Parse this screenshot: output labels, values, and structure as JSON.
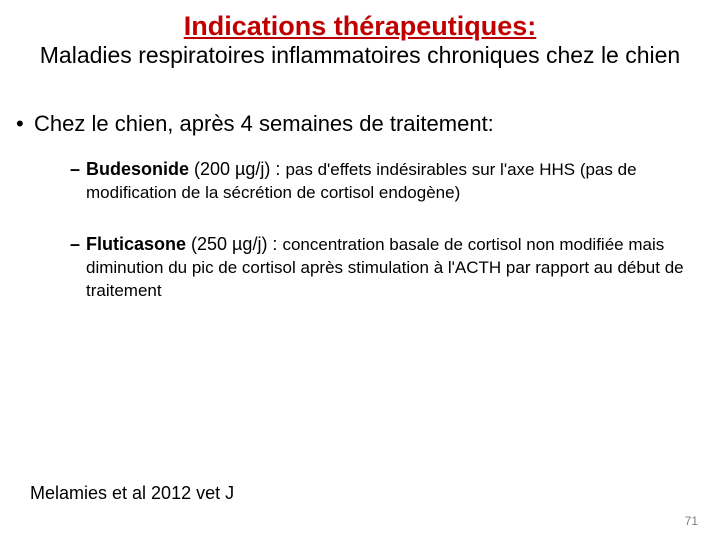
{
  "colors": {
    "title": "#c00000",
    "text": "#000000",
    "pagenum": "#808080",
    "background": "#ffffff"
  },
  "fontsize": {
    "title": 27,
    "subtitle": 23,
    "bullet_l1": 22,
    "l2_lead": 18,
    "l2_body": 17,
    "reference": 18,
    "pagenum": 12
  },
  "title": "Indications  thérapeutiques:",
  "subtitle": "Maladies respiratoires inflammatoires chroniques chez le chien",
  "intro_bullet": "Chez le chien, après 4 semaines de traitement:",
  "drugs": [
    {
      "name": "Budesonide",
      "dose": " (200 µg/j) : ",
      "desc": "pas d'effets indésirables sur l'axe HHS (pas de modification de la sécrétion de cortisol endogène)"
    },
    {
      "name": "Fluticasone",
      "dose": "  (250 µg/j) : ",
      "desc": "concentration basale de cortisol non modifiée mais diminution du pic de cortisol après stimulation à l'ACTH par rapport au début de traitement"
    }
  ],
  "reference": "Melamies et al 2012 vet J",
  "pagenum": "71"
}
